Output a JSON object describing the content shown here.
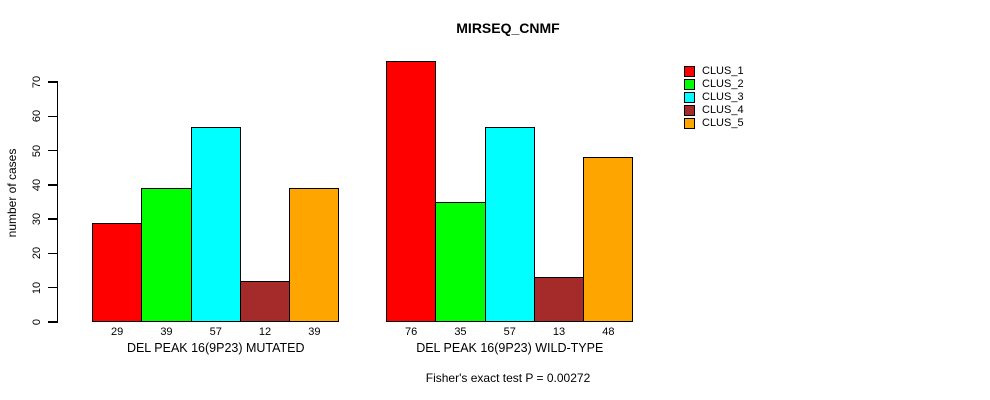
{
  "chart_data": {
    "type": "bar",
    "title": "MIRSEQ_CNMF",
    "ylabel": "number of cases",
    "xlabel": "",
    "ylim": [
      0,
      70
    ],
    "yticks": [
      0,
      10,
      20,
      30,
      40,
      50,
      60,
      70
    ],
    "grid": false,
    "legend_position": "top-right-outside",
    "groups": [
      {
        "label": "DEL PEAK 16(9P23) MUTATED",
        "values": [
          29,
          39,
          57,
          12,
          39
        ],
        "bar_value_labels": [
          "29",
          "39",
          "57",
          "12",
          "39"
        ]
      },
      {
        "label": "DEL PEAK 16(9P23) WILD-TYPE",
        "values": [
          76,
          35,
          57,
          13,
          48
        ],
        "bar_value_labels": [
          "76",
          "35",
          "57",
          "13",
          "48"
        ]
      }
    ],
    "series_colors": [
      "#ff0000",
      "#00ff00",
      "#00ffff",
      "#a52a2a",
      "#ffa500"
    ],
    "legend": [
      {
        "label": "CLUS_1",
        "color": "#ff0000"
      },
      {
        "label": "CLUS_2",
        "color": "#00ff00"
      },
      {
        "label": "CLUS_3",
        "color": "#00ffff"
      },
      {
        "label": "CLUS_4",
        "color": "#a52a2a"
      },
      {
        "label": "CLUS_5",
        "color": "#ffa500"
      }
    ],
    "footnote": "Fisher's exact test P = 0.00272",
    "axis_color": "#000000",
    "bar_border_color": "#000000"
  }
}
